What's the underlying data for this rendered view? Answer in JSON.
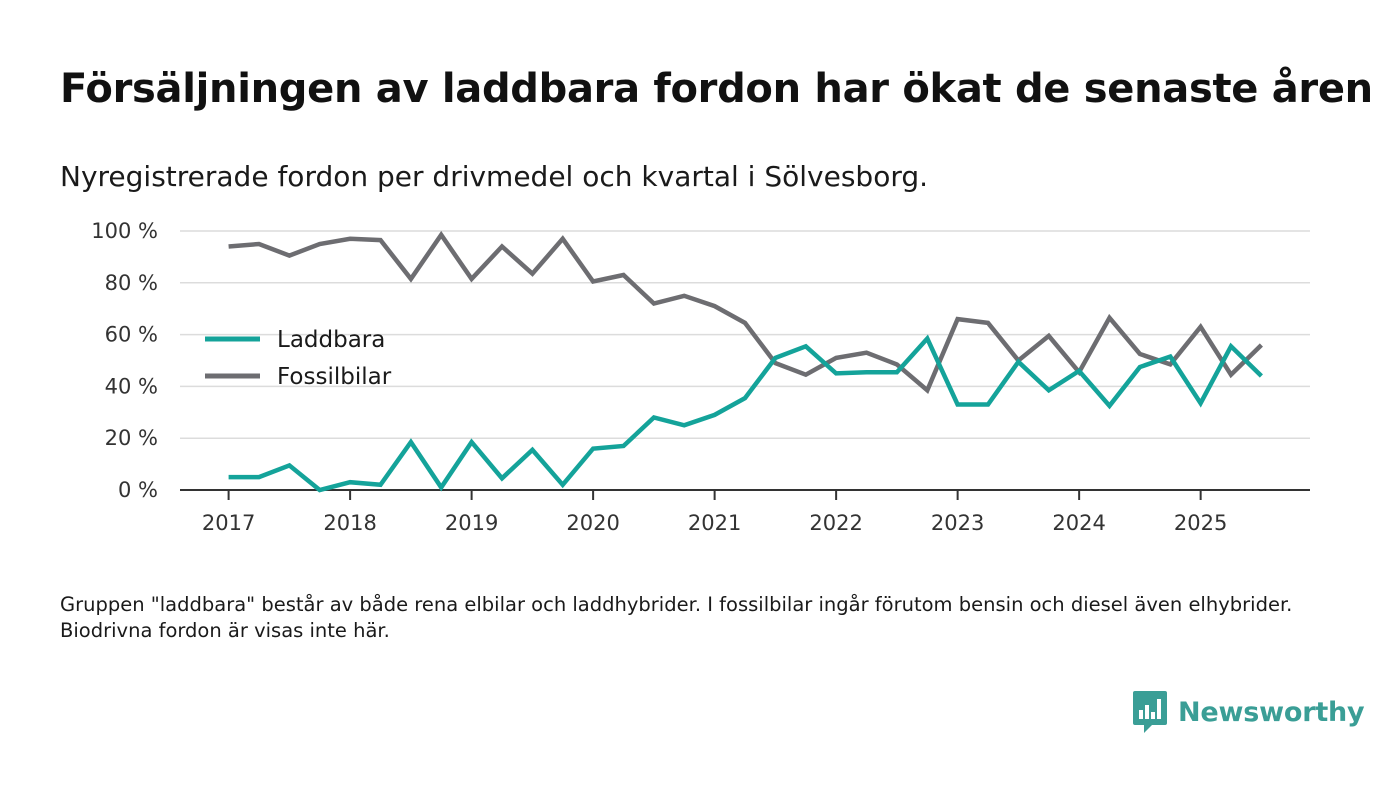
{
  "chart_data": {
    "type": "line",
    "title": "Försäljningen av laddbara fordon har ökat de senaste åren",
    "subtitle": "Nyregistrerade fordon per drivmedel och kvartal i Sölvesborg.",
    "xlabel": "",
    "ylabel": "",
    "x_start": 2017.0,
    "x_step": 0.25,
    "xlim": [
      2016.6,
      2025.9
    ],
    "ylim": [
      0,
      100
    ],
    "x_ticks": [
      2017,
      2018,
      2019,
      2020,
      2021,
      2022,
      2023,
      2024,
      2025
    ],
    "x_tick_labels": [
      "2017",
      "2018",
      "2019",
      "2020",
      "2021",
      "2022",
      "2023",
      "2024",
      "2025"
    ],
    "y_ticks": [
      0,
      20,
      40,
      60,
      80,
      100
    ],
    "y_tick_labels": [
      "0 %",
      "20 %",
      "40 %",
      "60 %",
      "80 %",
      "100 %"
    ],
    "grid": true,
    "legend_position": "left",
    "series": [
      {
        "name": "Laddbara",
        "color": "#14a39a",
        "values": [
          5,
          5,
          9.5,
          0,
          3,
          2,
          18.5,
          1,
          18.5,
          4.5,
          15.5,
          2,
          16,
          17,
          28,
          25,
          29,
          35.5,
          51,
          55.5,
          45,
          45.5,
          45.5,
          58.5,
          33,
          33,
          49.5,
          38.5,
          46,
          32.5,
          47.5,
          51.5,
          33.5,
          55.5,
          44
        ]
      },
      {
        "name": "Fossilbilar",
        "color": "#6d6d71",
        "values": [
          94,
          95,
          90.5,
          95,
          97,
          96.5,
          81.5,
          98.5,
          81.5,
          94,
          83.5,
          97,
          80.5,
          83,
          72,
          75,
          71,
          64.5,
          49,
          44.5,
          51,
          53,
          48.5,
          38.5,
          66,
          64.5,
          50,
          59.5,
          45.5,
          66.5,
          52.5,
          48.5,
          63,
          44.5,
          56
        ]
      }
    ]
  },
  "footnote": "Gruppen \"laddbara\" består av både rena elbilar och laddhybrider. I fossilbilar ingår förutom bensin och diesel även elhybrider. Biodrivna fordon är visas inte här.",
  "brand": {
    "name": "Newsworthy",
    "icon": "chart-bubble-icon",
    "color": "#3a9e96"
  }
}
